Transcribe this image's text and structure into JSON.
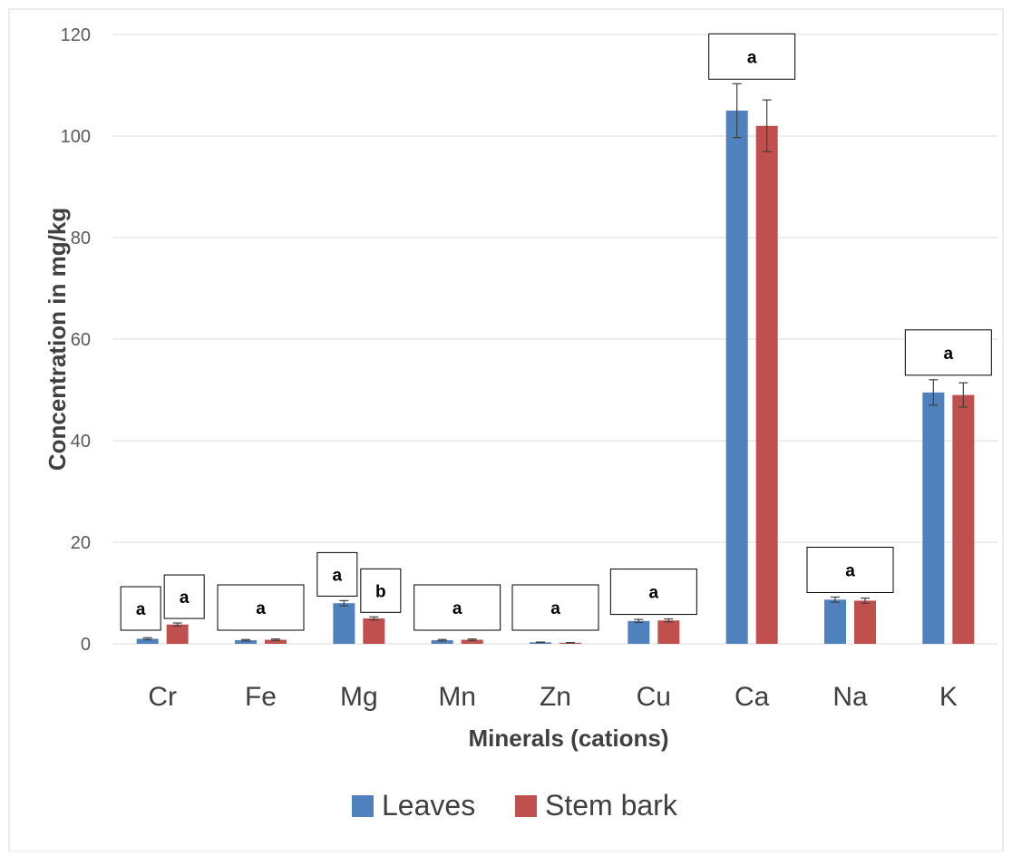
{
  "chart_data": {
    "type": "bar",
    "title": "",
    "xlabel": "Minerals (cations)",
    "ylabel": "Concentration in mg/kg",
    "ylim": [
      0,
      120
    ],
    "yticks": [
      0,
      20,
      40,
      60,
      80,
      100,
      120
    ],
    "grid": true,
    "legend_position": "bottom",
    "categories": [
      "Cr",
      "Fe",
      "Mg",
      "Mn",
      "Zn",
      "Cu",
      "Ca",
      "Na",
      "K"
    ],
    "series": [
      {
        "name": "Leaves",
        "color": "#4f81bd",
        "values": [
          1.0,
          0.7,
          8.0,
          0.7,
          0.3,
          4.5,
          105.0,
          8.7,
          49.5
        ],
        "errors": [
          0.2,
          0.15,
          0.5,
          0.15,
          0.05,
          0.3,
          5.3,
          0.5,
          2.5
        ]
      },
      {
        "name": "Stem bark",
        "color": "#c0504d",
        "values": [
          3.8,
          0.8,
          5.0,
          0.8,
          0.2,
          4.6,
          102.0,
          8.5,
          49.0
        ],
        "errors": [
          0.3,
          0.15,
          0.3,
          0.15,
          0.05,
          0.3,
          5.1,
          0.5,
          2.4
        ]
      }
    ],
    "annotations": [
      {
        "category": "Cr",
        "series": "Leaves",
        "text": "a"
      },
      {
        "category": "Cr",
        "series": "Stem bark",
        "text": "a"
      },
      {
        "category": "Fe",
        "series": "both",
        "text": "a"
      },
      {
        "category": "Mg",
        "series": "Leaves",
        "text": "a"
      },
      {
        "category": "Mg",
        "series": "Stem bark",
        "text": "b"
      },
      {
        "category": "Mn",
        "series": "both",
        "text": "a"
      },
      {
        "category": "Zn",
        "series": "both",
        "text": "a"
      },
      {
        "category": "Cu",
        "series": "both",
        "text": "a"
      },
      {
        "category": "Ca",
        "series": "both",
        "text": "a"
      },
      {
        "category": "Na",
        "series": "both",
        "text": "a"
      },
      {
        "category": "K",
        "series": "both",
        "text": "a"
      }
    ]
  }
}
